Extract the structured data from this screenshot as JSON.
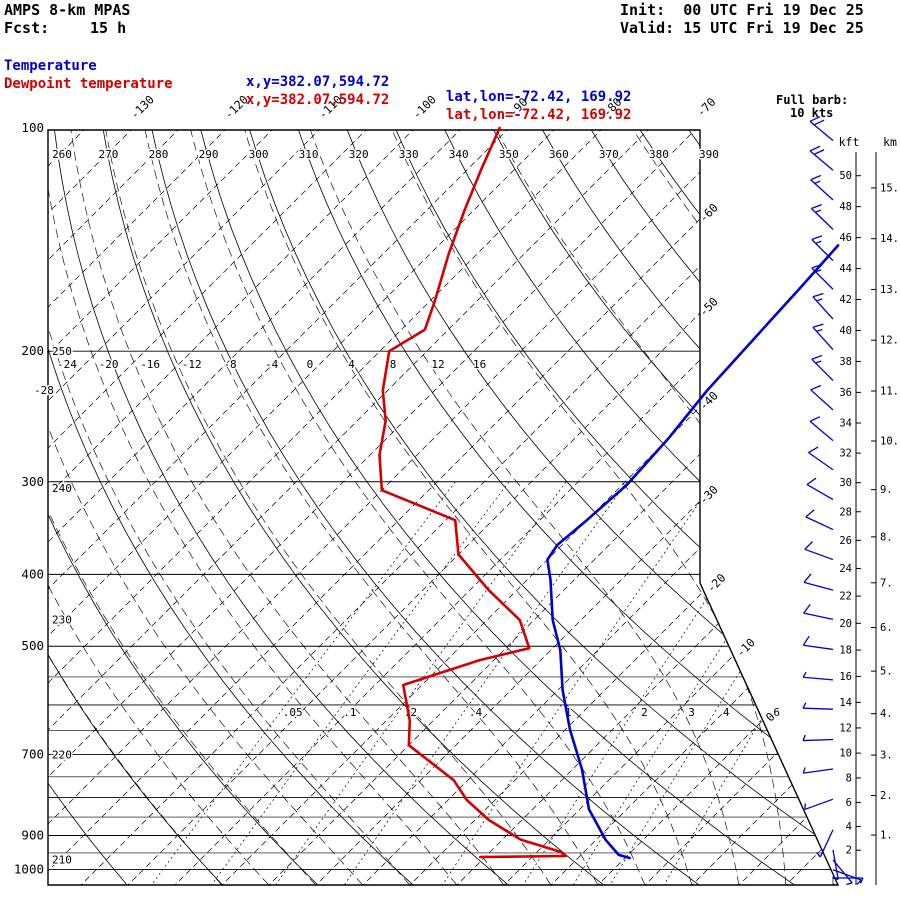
{
  "header": {
    "model": "AMPS 8-km MPAS",
    "fcst_label": "Fcst:",
    "fcst_value": "15 h",
    "init": "Init:  00 UTC Fri 19 Dec 25",
    "valid": "Valid: 15 UTC Fri 19 Dec 25",
    "full_barb_line1": "Full barb:",
    "full_barb_line2": "10 kts",
    "legend": [
      {
        "label": "Temperature",
        "color": "#0000cd",
        "xy": "x,y=382.07,594.72",
        "latlon": "lat,lon=-72.42, 169.92"
      },
      {
        "label": "Dewpoint temperature",
        "color": "#d40000",
        "xy": "x,y=382.07,594.72",
        "latlon": "lat,lon=-72.42, 169.92"
      }
    ]
  },
  "chart_data": {
    "type": "line",
    "diagram": "skew-T log-p sounding",
    "pressure_axis": {
      "range": [
        100,
        1050
      ],
      "ticks_labeled": [
        100,
        200,
        300,
        400,
        500,
        700,
        900,
        1000
      ],
      "lines": [
        200,
        300,
        400,
        500,
        550,
        600,
        650,
        700,
        750,
        800,
        850,
        900,
        950,
        1000
      ]
    },
    "isotherms": {
      "min": -145,
      "max": 35,
      "step": 5,
      "top_labels": [
        -130,
        -120,
        -110,
        -100,
        -90,
        -80,
        -70
      ],
      "edge_labels": [
        -60,
        -50,
        -40,
        -30,
        -20,
        -10,
        0
      ]
    },
    "dry_adiabats": {
      "min": 200,
      "max": 400,
      "step": 10,
      "top_labels": [
        260,
        270,
        280,
        290,
        300,
        310,
        320,
        330,
        340,
        350,
        360,
        370,
        380,
        390
      ],
      "left_labels": [
        [
          250,
          200
        ],
        [
          240,
          306
        ],
        [
          230,
          460
        ],
        [
          220,
          700
        ],
        [
          210,
          970
        ]
      ]
    },
    "moist_adiabats": {
      "surface_temps": [
        -40,
        -35,
        -30,
        -25,
        -20,
        -15,
        -10,
        -5,
        0,
        5,
        10,
        15,
        20,
        25,
        30
      ]
    },
    "mixing_ratio_lines": [
      0.05,
      0.1,
      0.2,
      0.4,
      1,
      2,
      3,
      4,
      6
    ],
    "upper_scale_200hpa": [
      -28,
      -24,
      -20,
      -16,
      -12,
      -8,
      -4,
      0,
      4,
      8,
      12,
      16
    ],
    "series": [
      {
        "name": "Temperature",
        "color": "#0000cd",
        "points": [
          [
            144,
            -42.5
          ],
          [
            165,
            -42
          ],
          [
            193,
            -41.5
          ],
          [
            226,
            -41
          ],
          [
            263,
            -40
          ],
          [
            303,
            -39.5
          ],
          [
            338,
            -40
          ],
          [
            365,
            -40.5
          ],
          [
            382,
            -40
          ],
          [
            407,
            -37.5
          ],
          [
            461,
            -33
          ],
          [
            506,
            -29
          ],
          [
            573,
            -24.5
          ],
          [
            648,
            -19.5
          ],
          [
            733,
            -14
          ],
          [
            830,
            -9
          ],
          [
            912,
            -4
          ],
          [
            956,
            -1
          ],
          [
            965,
            0.5
          ]
        ]
      },
      {
        "name": "Dewpoint temperature",
        "color": "#d40000",
        "points": [
          [
            100,
            -91
          ],
          [
            114,
            -88.5
          ],
          [
            129,
            -86
          ],
          [
            148,
            -83
          ],
          [
            171,
            -79.5
          ],
          [
            187,
            -77.5
          ],
          [
            200,
            -79
          ],
          [
            226,
            -75.5
          ],
          [
            248,
            -72
          ],
          [
            276,
            -69
          ],
          [
            308,
            -65
          ],
          [
            338,
            -54
          ],
          [
            376,
            -50
          ],
          [
            420,
            -43
          ],
          [
            461,
            -36.5
          ],
          [
            503,
            -32.5
          ],
          [
            522,
            -36.5
          ],
          [
            564,
            -42
          ],
          [
            630,
            -37.5
          ],
          [
            680,
            -35
          ],
          [
            758,
            -26.5
          ],
          [
            806,
            -23
          ],
          [
            858,
            -18.5
          ],
          [
            912,
            -13
          ],
          [
            947,
            -7.5
          ],
          [
            959,
            -6.5
          ],
          [
            962,
            -15.5
          ]
        ]
      }
    ],
    "wind_barbs": {
      "color": "#0000cd",
      "full_barb_kts": 10,
      "levels": [
        [
          104,
          20,
          310
        ],
        [
          114,
          20,
          310
        ],
        [
          125,
          18,
          312
        ],
        [
          137,
          18,
          314
        ],
        [
          151,
          15,
          315
        ],
        [
          165,
          15,
          315
        ],
        [
          181,
          15,
          318
        ],
        [
          199,
          15,
          318
        ],
        [
          219,
          15,
          315
        ],
        [
          240,
          12,
          312
        ],
        [
          264,
          12,
          310
        ],
        [
          289,
          10,
          305
        ],
        [
          317,
          10,
          300
        ],
        [
          348,
          10,
          295
        ],
        [
          382,
          10,
          290
        ],
        [
          420,
          10,
          285
        ],
        [
          460,
          10,
          282
        ],
        [
          505,
          10,
          278
        ],
        [
          555,
          8,
          275
        ],
        [
          608,
          8,
          272
        ],
        [
          668,
          8,
          268
        ],
        [
          732,
          8,
          262
        ],
        [
          804,
          6,
          250
        ],
        [
          884,
          8,
          205
        ],
        [
          941,
          8,
          170
        ],
        [
          971,
          6,
          140
        ],
        [
          1001,
          6,
          110
        ],
        [
          1027,
          5,
          90
        ]
      ]
    },
    "height_axes": {
      "kft": {
        "label": "kft",
        "min": 2,
        "max": 50,
        "step": 2
      },
      "km": {
        "label": "km",
        "min": 1,
        "max": 15,
        "step": 1
      }
    }
  }
}
